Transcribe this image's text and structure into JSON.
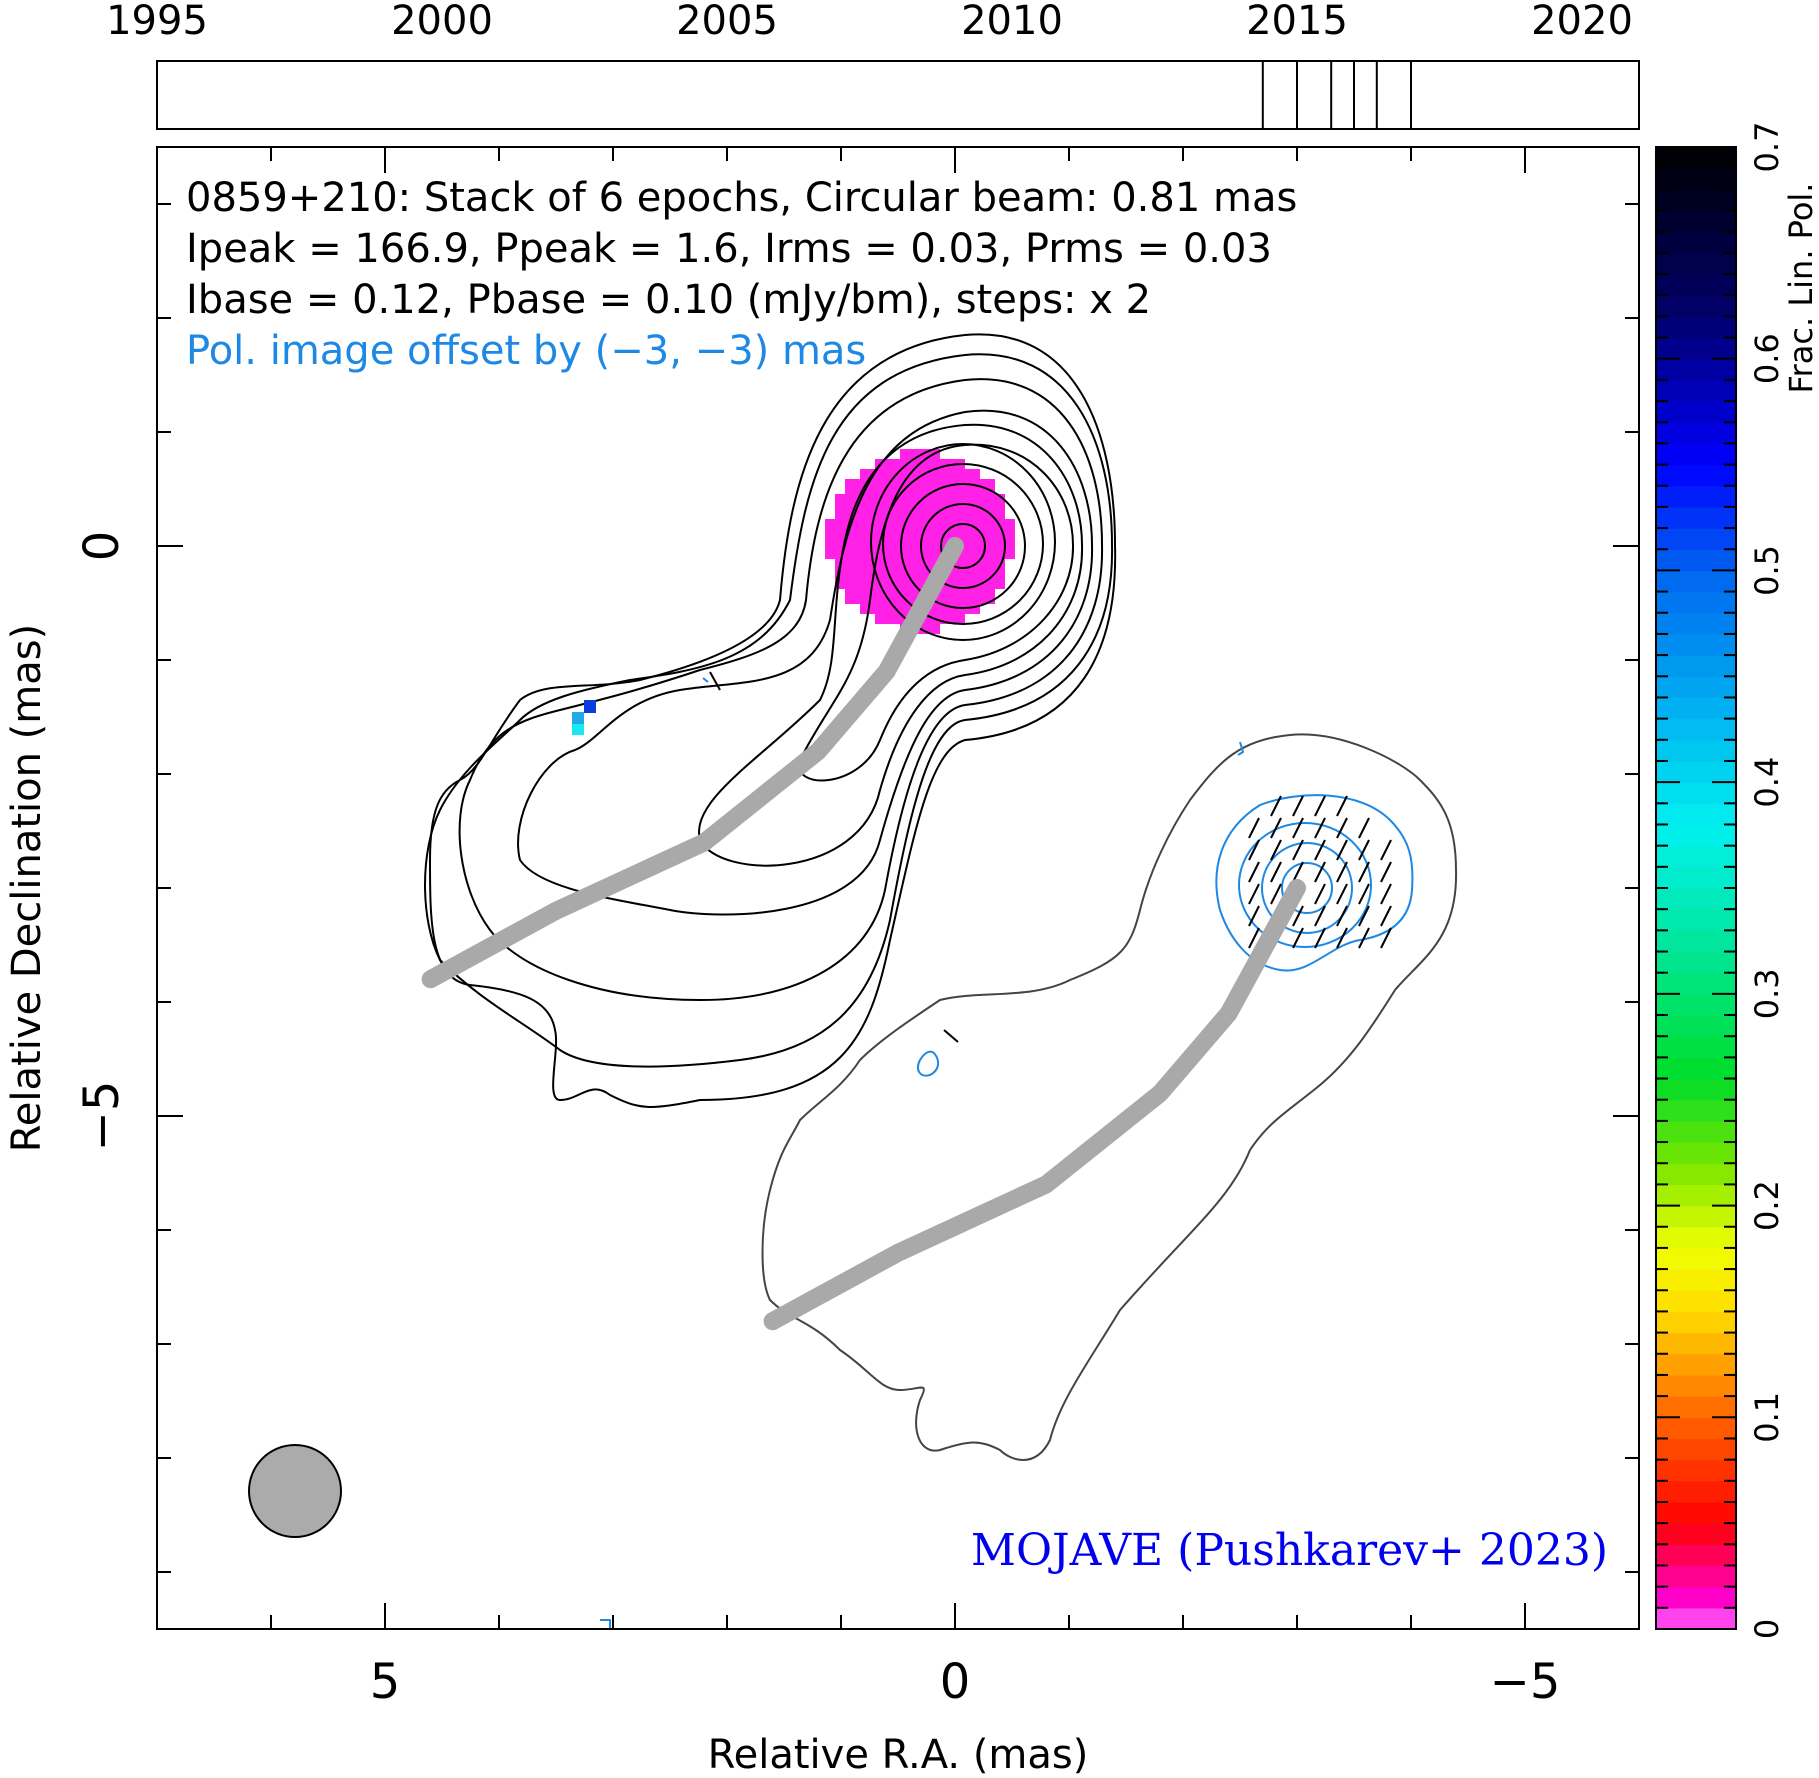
{
  "chart_data": {
    "type": "heatmap",
    "header_lines": [
      "0859+210: Stack of 6 epochs, Circular beam: 0.81 mas",
      "Ipeak = 166.9, Ppeak = 1.6, Irms = 0.03, Prms = 0.03",
      "Ibase = 0.12, Pbase = 0.10 (mJy/bm), steps: x 2"
    ],
    "pol_offset_note": "Pol. image offset by (−3, −3) mas",
    "credit": "MOJAVE (Pushkarev+ 2023)",
    "xlabel": "Relative R.A. (mas)",
    "ylabel": "Relative Declination (mas)",
    "x_ticks": [
      "5",
      "0",
      "−5"
    ],
    "y_ticks": [
      "0",
      "−5"
    ],
    "xlim": [
      7.0,
      -6.0
    ],
    "ylim": [
      -9.5,
      3.5
    ],
    "timeline": {
      "ticks": [
        "1995",
        "2000",
        "2005",
        "2010",
        "2015",
        "2020"
      ],
      "range": [
        1995,
        2021
      ],
      "epochs": [
        2014.4,
        2015.0,
        2015.6,
        2016.0,
        2016.4,
        2017.0
      ]
    },
    "colorbar": {
      "label": "Frac. Lin. Pol.",
      "range": [
        0,
        0.7
      ],
      "ticks": [
        "0",
        "0.1",
        "0.2",
        "0.3",
        "0.4",
        "0.5",
        "0.6",
        "0.7"
      ]
    },
    "beam_mas": 0.81,
    "ridgeline_mas": [
      [
        4.6,
        -3.8
      ],
      [
        3.5,
        -3.2
      ],
      [
        2.2,
        -2.6
      ],
      [
        1.2,
        -1.8
      ],
      [
        0.6,
        -1.1
      ],
      [
        0.0,
        0.0
      ]
    ],
    "colors": {
      "contour": "#000000",
      "pol_contour": "#1e88e5",
      "ridgeline": "#a9a9a9",
      "note": "#1e88e5",
      "credit": "#0000ee",
      "core_fpol": "#ff22e6"
    }
  }
}
